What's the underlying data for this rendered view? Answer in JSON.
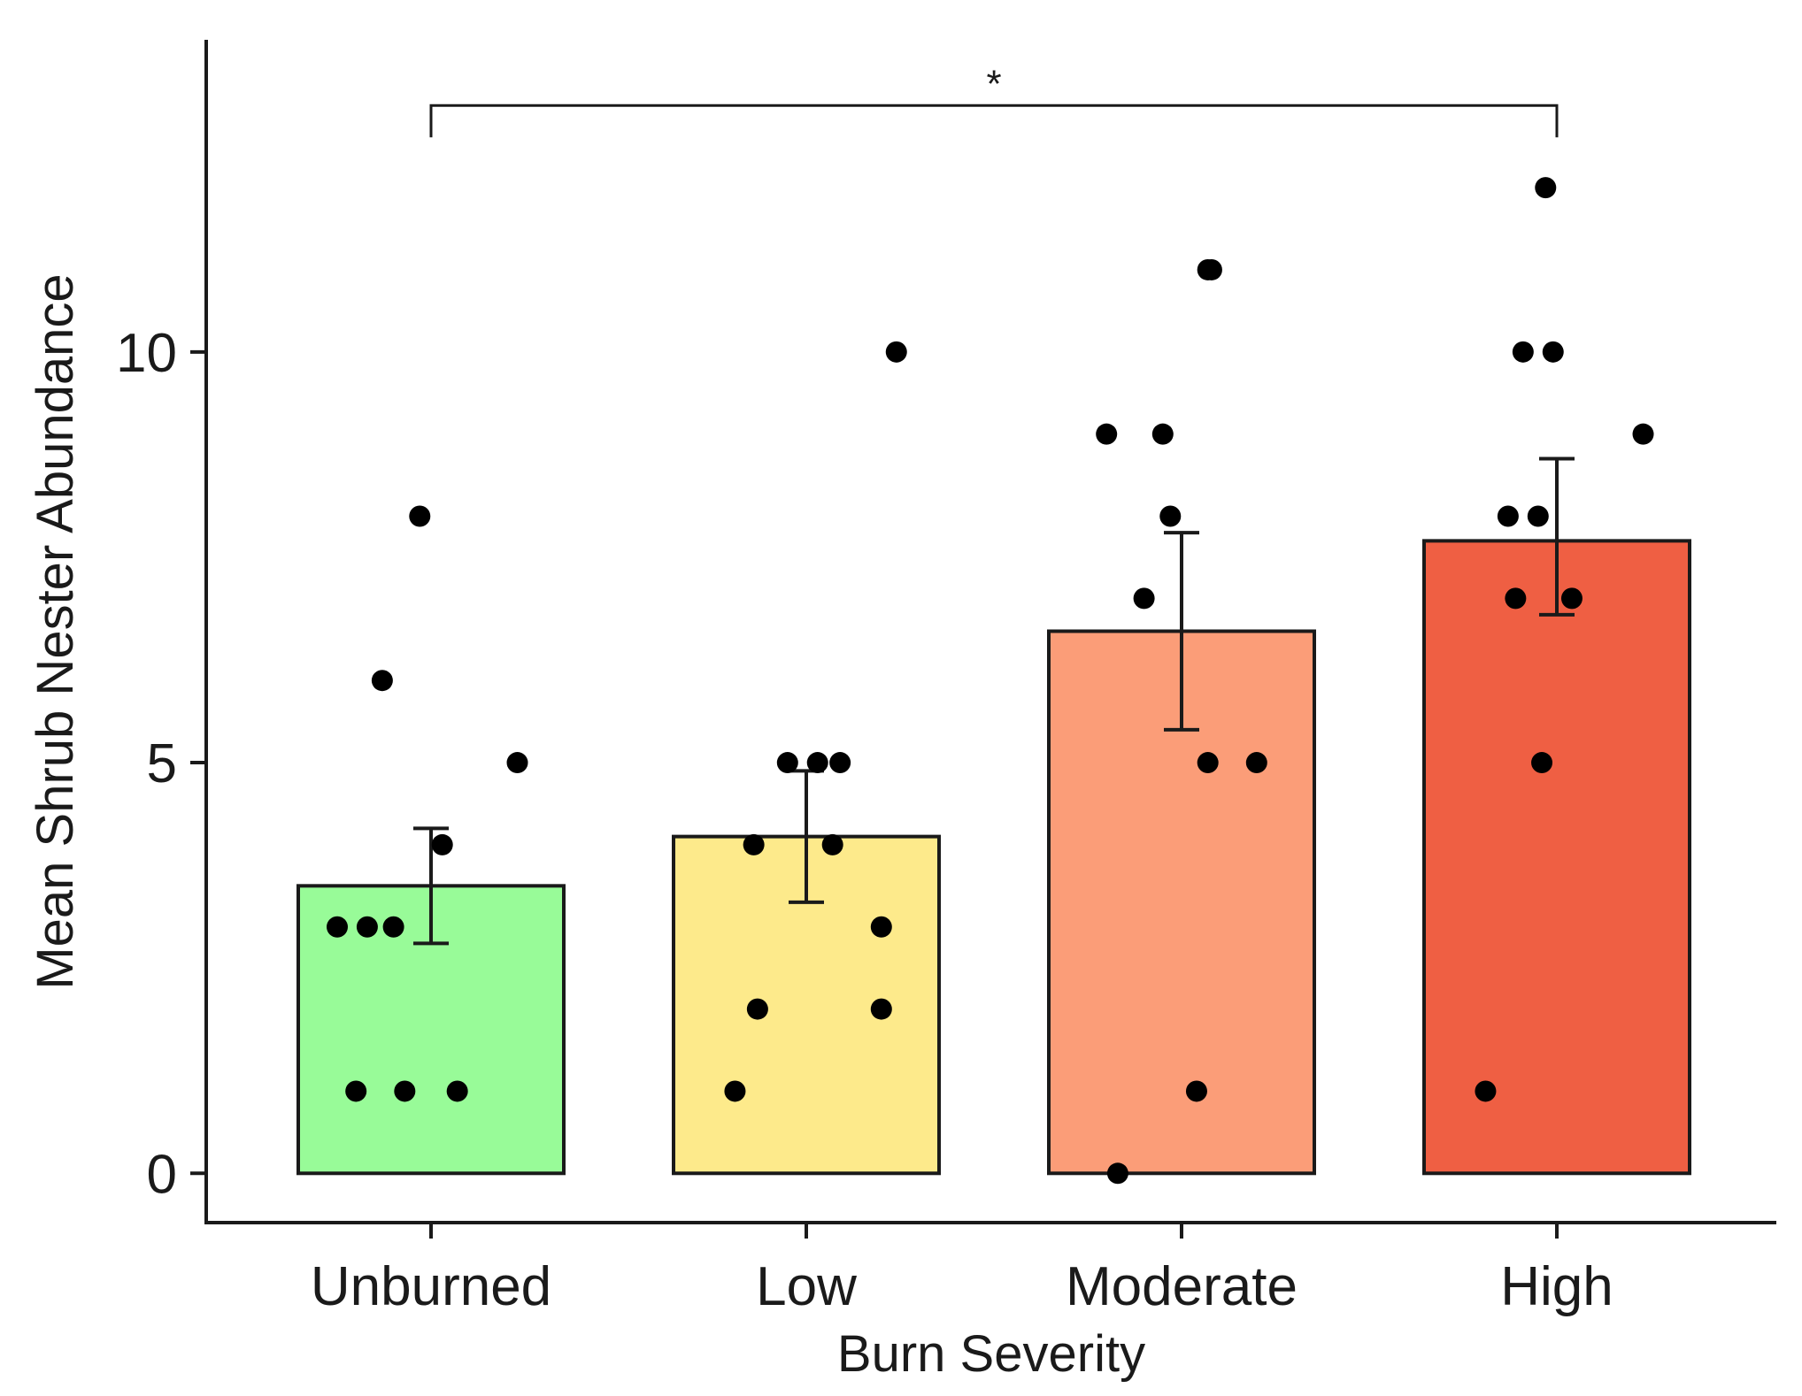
{
  "chart_data": {
    "type": "bar",
    "title": "",
    "xlabel": "Burn Severity",
    "ylabel": "Mean Shrub Nester Abundance",
    "ylim": [
      -0.6,
      13.8
    ],
    "yticks": [
      0,
      5,
      10
    ],
    "categories": [
      "Unburned",
      "Low",
      "Moderate",
      "High"
    ],
    "means": [
      3.5,
      4.1,
      6.6,
      7.7
    ],
    "error_low": [
      2.8,
      3.3,
      5.4,
      6.8
    ],
    "error_high": [
      4.2,
      4.9,
      7.8,
      8.7
    ],
    "colors": [
      "#98fb98",
      "#fdea8b",
      "#fb9d78",
      "#ef5f43"
    ],
    "points": [
      [
        [
          -0.25,
          3
        ],
        [
          -0.17,
          3
        ],
        [
          -0.1,
          3
        ],
        [
          -0.2,
          1
        ],
        [
          -0.07,
          1
        ],
        [
          0.07,
          1
        ],
        [
          -0.13,
          6
        ],
        [
          -0.03,
          8
        ],
        [
          0.03,
          4
        ],
        [
          0.23,
          5
        ]
      ],
      [
        [
          -0.05,
          5
        ],
        [
          0.03,
          5
        ],
        [
          0.09,
          5
        ],
        [
          -0.14,
          4
        ],
        [
          0.07,
          4
        ],
        [
          0.2,
          3
        ],
        [
          -0.13,
          2
        ],
        [
          0.2,
          2
        ],
        [
          -0.19,
          1
        ],
        [
          0.24,
          10
        ]
      ],
      [
        [
          -0.2,
          9
        ],
        [
          -0.05,
          9
        ],
        [
          -0.03,
          8
        ],
        [
          -0.1,
          7
        ],
        [
          0.07,
          11
        ],
        [
          0.08,
          11
        ],
        [
          0.07,
          5
        ],
        [
          0.2,
          5
        ],
        [
          0.04,
          1
        ],
        [
          -0.17,
          0
        ]
      ],
      [
        [
          -0.03,
          12
        ],
        [
          -0.09,
          10
        ],
        [
          -0.01,
          10
        ],
        [
          0.23,
          9
        ],
        [
          -0.13,
          8
        ],
        [
          -0.05,
          8
        ],
        [
          -0.11,
          7
        ],
        [
          0.04,
          7
        ],
        [
          -0.04,
          5
        ],
        [
          -0.19,
          1
        ]
      ]
    ],
    "significance": {
      "from": 0,
      "to": 3,
      "label": "*",
      "y": 13
    }
  }
}
